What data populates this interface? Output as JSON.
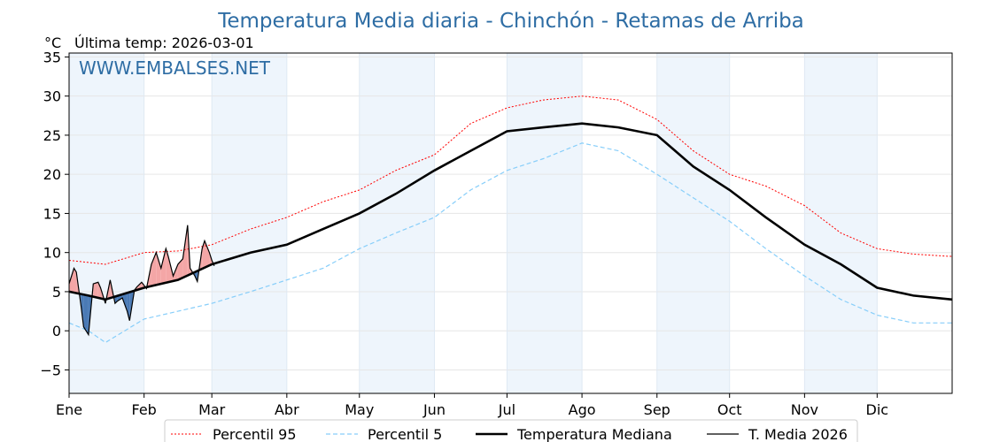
{
  "chart_data": {
    "type": "line",
    "title": "Temperatura Media diaria - Chinchón - Retamas de Arriba",
    "unit_label": "°C",
    "last_temp_label": "Última temp: 2026-03-01",
    "watermark": "WWW.EMBALSES.NET",
    "ylim": [
      -8,
      35.5
    ],
    "yticks": [
      -5,
      0,
      5,
      10,
      15,
      20,
      25,
      30,
      35
    ],
    "xlim_days": [
      0,
      365
    ],
    "month_labels": [
      "Ene",
      "Feb",
      "Mar",
      "Abr",
      "May",
      "Jun",
      "Jul",
      "Ago",
      "Sep",
      "Oct",
      "Nov",
      "Dic"
    ],
    "month_start_days": [
      0,
      31,
      59,
      90,
      120,
      151,
      181,
      212,
      243,
      273,
      304,
      334
    ],
    "shaded_month_indices": [
      0,
      2,
      4,
      6,
      8,
      10
    ],
    "legend": [
      "Percentil 95",
      "Percentil 5",
      "Temperatura Mediana",
      "T. Media 2026"
    ],
    "colors": {
      "p95": "#ff0000",
      "p5": "#87cefa",
      "median": "#000000",
      "current": "#000000",
      "above_fill": "#f4a6a6",
      "below_fill": "#4a7ab5",
      "title": "#2e6da4",
      "shade": "#eef5fc",
      "grid": "#e6e6e6"
    },
    "series": [
      {
        "name": "Percentil 95",
        "style": "dotted",
        "x": [
          0,
          15,
          31,
          45,
          59,
          75,
          90,
          105,
          120,
          135,
          151,
          166,
          181,
          196,
          212,
          227,
          243,
          258,
          273,
          288,
          304,
          319,
          334,
          349,
          365
        ],
        "y": [
          9,
          8.5,
          10,
          10.2,
          11,
          13,
          14.5,
          16.5,
          18,
          20.5,
          22.5,
          26.5,
          28.5,
          29.5,
          30,
          29.5,
          27,
          23,
          20,
          18.5,
          16,
          12.5,
          10.5,
          9.8,
          9.5
        ]
      },
      {
        "name": "Percentil 5",
        "style": "dashed",
        "x": [
          0,
          8,
          15,
          31,
          45,
          59,
          75,
          90,
          105,
          120,
          135,
          151,
          166,
          181,
          196,
          212,
          227,
          243,
          258,
          273,
          288,
          304,
          319,
          334,
          349,
          365
        ],
        "y": [
          1,
          0,
          -1.5,
          1.5,
          2.5,
          3.5,
          5,
          6.5,
          8,
          10.5,
          12.5,
          14.5,
          18,
          20.5,
          22,
          24,
          23,
          20,
          17,
          14,
          10.5,
          7,
          4,
          2,
          1,
          1
        ]
      },
      {
        "name": "Temperatura Mediana",
        "style": "solid",
        "x": [
          0,
          8,
          15,
          31,
          45,
          59,
          75,
          90,
          105,
          120,
          135,
          151,
          166,
          181,
          196,
          212,
          227,
          243,
          258,
          273,
          288,
          304,
          319,
          334,
          349,
          365
        ],
        "y": [
          5,
          4.5,
          4,
          5.5,
          6.5,
          8.5,
          10,
          11,
          13,
          15,
          17.5,
          20.5,
          23,
          25.5,
          26,
          26.5,
          26,
          25,
          21,
          18,
          14.5,
          11,
          8.5,
          5.5,
          4.5,
          4
        ]
      },
      {
        "name": "T. Media 2026",
        "style": "solid-thin",
        "x": [
          0,
          2,
          3,
          5,
          6,
          8,
          10,
          12,
          13,
          15,
          17,
          19,
          20,
          22,
          24,
          25,
          27,
          28,
          30,
          32,
          34,
          36,
          38,
          40,
          41,
          43,
          45,
          47,
          49,
          50,
          52,
          53,
          55,
          56,
          58,
          59,
          60
        ],
        "y": [
          6,
          8,
          7.5,
          3,
          0.5,
          -0.5,
          6,
          6.2,
          5.5,
          3.5,
          6.5,
          3.5,
          3.8,
          4.2,
          2.5,
          1.3,
          5.2,
          5.6,
          6.2,
          5.4,
          8.5,
          10,
          8,
          10.5,
          9.5,
          7,
          8.5,
          9.2,
          13.5,
          8,
          7,
          6.3,
          10.5,
          11.5,
          10,
          9,
          8.3
        ]
      }
    ]
  }
}
